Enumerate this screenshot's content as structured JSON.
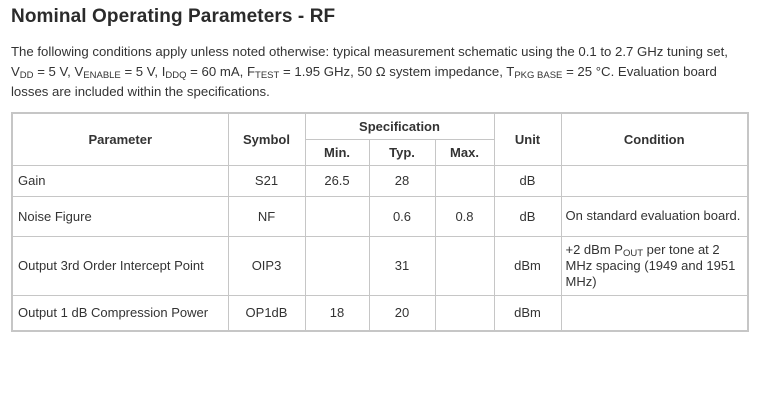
{
  "title": "Nominal Operating Parameters - RF",
  "intro": {
    "t1": "The following conditions apply unless noted otherwise: typical measurement schematic using the 0.1 to 2.7 GHz tuning set,",
    "v1": "V",
    "v1_sub": "DD",
    "t2": " = 5 V, V",
    "v2_sub": "ENABLE",
    "t3": " = 5 V, I",
    "i_sub": "DDQ",
    "t4": " = 60 mA, F",
    "f_sub": "TEST",
    "t5": " = 1.95 GHz, 50 Ω system impedance, T",
    "tp_sub": "PKG BASE",
    "t6": " = 25 °C. Evaluation board",
    "t7": "losses are included within the specifications."
  },
  "table": {
    "headers": {
      "parameter": "Parameter",
      "symbol": "Symbol",
      "specification": "Specification",
      "min": "Min.",
      "typ": "Typ.",
      "max": "Max.",
      "unit": "Unit",
      "condition": "Condition"
    },
    "rows": [
      {
        "parameter": "Gain",
        "symbol": "S21",
        "min": "26.5",
        "typ": "28",
        "max": "",
        "unit": "dB",
        "condition": ""
      },
      {
        "parameter": "Noise Figure",
        "symbol": "NF",
        "min": "",
        "typ": "0.6",
        "max": "0.8",
        "unit": "dB",
        "condition": "On standard evaluation board."
      },
      {
        "parameter": "Output 3rd Order Intercept Point",
        "symbol": "OIP3",
        "min": "",
        "typ": "31",
        "max": "",
        "unit": "dBm",
        "condition_a": "+2 dBm P",
        "condition_sub": "OUT",
        "condition_b": " per tone at 2 MHz spacing (1949 and 1951 MHz)"
      },
      {
        "parameter": "Output 1 dB Compression Power",
        "symbol": "OP1dB",
        "min": "18",
        "typ": "20",
        "max": "",
        "unit": "dBm",
        "condition": ""
      }
    ]
  }
}
